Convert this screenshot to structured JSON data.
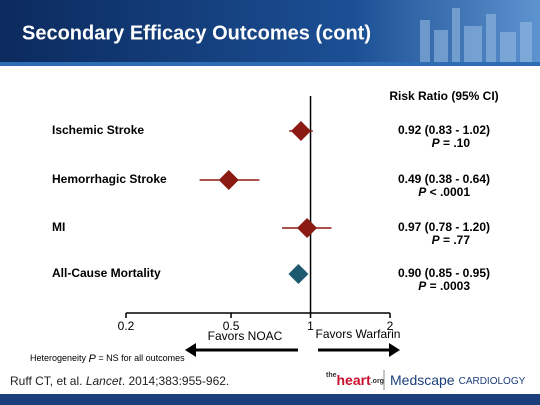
{
  "chart_data": {
    "type": "forest",
    "title": "Secondary Efficacy Outcomes (cont)",
    "column_header": "Risk Ratio (95% CI)",
    "categories": [
      "Ischemic Stroke",
      "Hemorrhagic Stroke",
      "MI",
      "All-Cause Mortality"
    ],
    "values": [
      0.92,
      0.49,
      0.97,
      0.9
    ],
    "ci_low": [
      0.83,
      0.38,
      0.78,
      0.85
    ],
    "ci_high": [
      1.02,
      0.64,
      1.2,
      0.95
    ],
    "value_labels": [
      "0.92 (0.83 - 1.02)",
      "0.49 (0.38 - 0.64)",
      "0.97 (0.78 - 1.20)",
      "0.90 (0.85 - 0.95)"
    ],
    "p_labels": [
      "P = .10",
      "P < .0001",
      "P = .77",
      "P = .0003"
    ],
    "colors": [
      "#8b1a12",
      "#8b1a12",
      "#8b1a12",
      "#1d5a70"
    ],
    "x_scale": "log",
    "xlim": [
      0.2,
      2
    ],
    "xticks": [
      0.2,
      0.5,
      1,
      2
    ],
    "reference_line": 1,
    "left_arrow_label": "Favors NOAC",
    "right_arrow_label": "Favors Warfarin",
    "footnote": "Heterogeneity P = NS for all outcomes"
  },
  "citation": [
    "Ruff CT, et al. ",
    "Lancet",
    ". 2014;383:955-962."
  ],
  "logo": {
    "prefix": "the",
    "brand": "heart",
    "suffix": ".org",
    "partner": "Medscape",
    "section": "CARDIOLOGY"
  }
}
